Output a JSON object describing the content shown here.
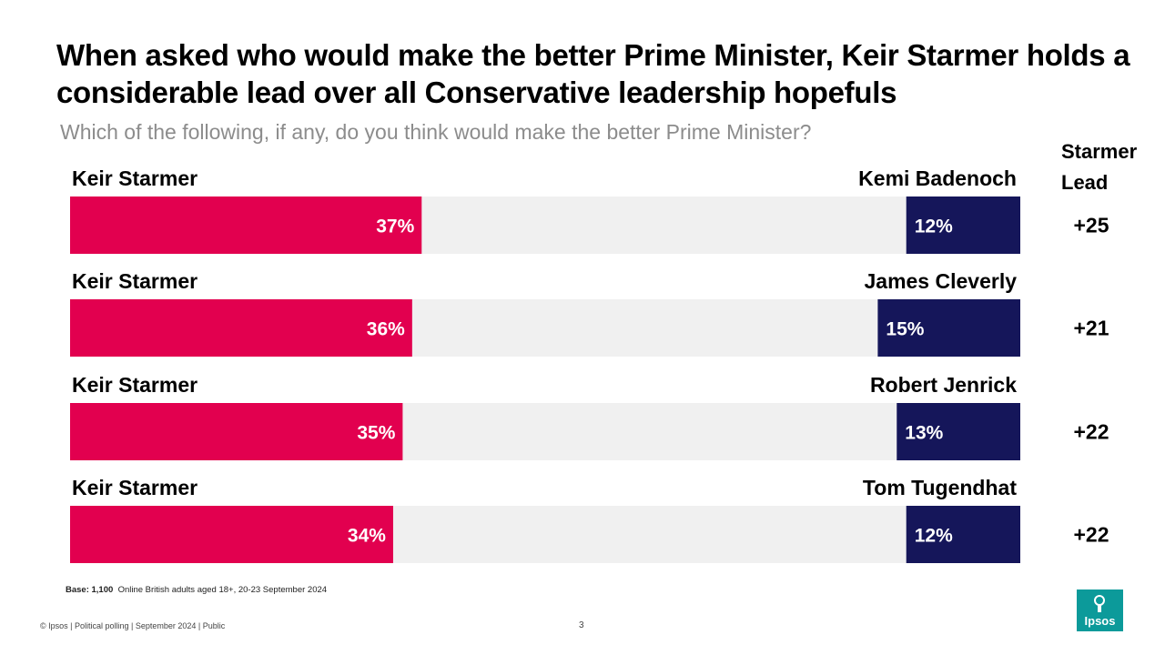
{
  "title": "When asked who would make the better Prime Minister, Keir Starmer holds a considerable lead over all Conservative leadership hopefuls",
  "subtitle": "Which of the following, if any, do you think would make the better Prime Minister?",
  "lead_header_line1": "Starmer",
  "lead_header_line2": "Lead",
  "colors": {
    "starmer": "#e2004f",
    "opponent": "#15165a",
    "track": "#f0f0f0"
  },
  "chart_data": {
    "type": "bar",
    "orientation": "horizontal-diverging",
    "title": "When asked who would make the better Prime Minister, Keir Starmer holds a considerable lead over all Conservative leadership hopefuls",
    "subtitle": "Which of the following, if any, do you think would make the better Prime Minister?",
    "xlim": [
      0,
      100
    ],
    "unit": "%",
    "rows": [
      {
        "left_label": "Keir Starmer",
        "right_label": "Kemi Badenoch",
        "starmer": 37,
        "opponent": 12,
        "starmer_label": "37%",
        "opponent_label": "12%",
        "lead": "+25"
      },
      {
        "left_label": "Keir Starmer",
        "right_label": "James Cleverly",
        "starmer": 36,
        "opponent": 15,
        "starmer_label": "36%",
        "opponent_label": "15%",
        "lead": "+21"
      },
      {
        "left_label": "Keir Starmer",
        "right_label": "Robert Jenrick",
        "starmer": 35,
        "opponent": 13,
        "starmer_label": "35%",
        "opponent_label": "13%",
        "lead": "+22"
      },
      {
        "left_label": "Keir Starmer",
        "right_label": "Tom Tugendhat",
        "starmer": 34,
        "opponent": 12,
        "starmer_label": "34%",
        "opponent_label": "12%",
        "lead": "+22"
      }
    ]
  },
  "base": {
    "label": "Base: 1,100",
    "text": "Online British adults aged 18+, 20-23 September 2024"
  },
  "footer": "© Ipsos | Political polling | September 2024 | Public",
  "page_number": "3",
  "logo_text": "Ipsos"
}
